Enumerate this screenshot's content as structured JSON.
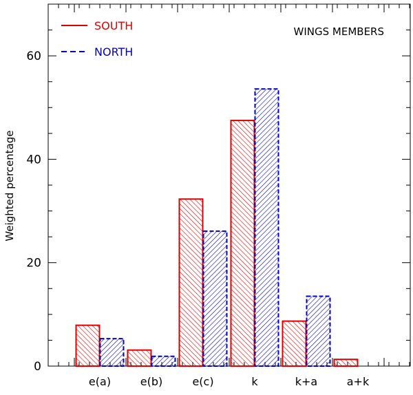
{
  "chart_data": {
    "type": "bar",
    "title": "WINGS MEMBERS",
    "xlabel": "",
    "ylabel": "Weighted percentage",
    "ylim": [
      0,
      70
    ],
    "yticks": [
      0,
      20,
      40,
      60
    ],
    "grid": false,
    "legend_position": "top-left",
    "categories": [
      "e(a)",
      "e(b)",
      "e(c)",
      "k",
      "k+a",
      "a+k"
    ],
    "series": [
      {
        "name": "SOUTH",
        "values": [
          7.9,
          3.1,
          32.3,
          47.5,
          8.7,
          1.3
        ],
        "color": "#dd0000",
        "line_style": "solid",
        "hatch": "backslash"
      },
      {
        "name": "NORTH",
        "values": [
          5.3,
          1.9,
          26.1,
          53.6,
          13.5,
          0
        ],
        "color": "#0000cc",
        "line_style": "dashed",
        "hatch": "slash"
      }
    ]
  }
}
